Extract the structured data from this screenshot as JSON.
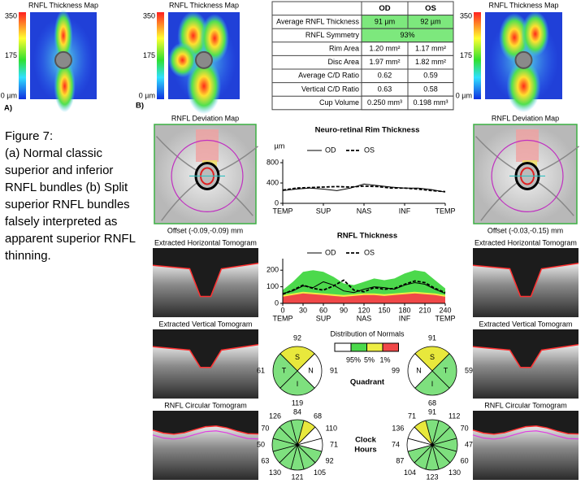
{
  "panel_a": {
    "label": "A)",
    "map_title": "RNFL Thickness Map",
    "scale": [
      "350",
      "175",
      "0 µm"
    ]
  },
  "panel_b": {
    "label": "B)",
    "od_map_title": "RNFL Thickness Map",
    "od_scale": [
      "350",
      "175",
      "0 µm"
    ],
    "os_map_title": "RNFL Thickness Map",
    "os_scale": [
      "350",
      "175",
      "0 µm"
    ]
  },
  "table": {
    "header": [
      "OD",
      "OS"
    ],
    "rows": [
      [
        "Average RNFL Thickness",
        "91 µm",
        "92 µm"
      ],
      [
        "RNFL Symmetry",
        "93%"
      ],
      [
        "Rim Area",
        "1.20 mm²",
        "1.17 mm²"
      ],
      [
        "Disc Area",
        "1.97 mm²",
        "1.82 mm²"
      ],
      [
        "Average C/D Ratio",
        "0.62",
        "0.59"
      ],
      [
        "Vertical C/D Ratio",
        "0.63",
        "0.58"
      ],
      [
        "Cup Volume",
        "0.250 mm³",
        "0.198 mm³"
      ]
    ]
  },
  "caption": [
    "Figure 7:",
    "(a) Normal classic",
    "superior and inferior",
    "RNFL bundles (b) Split",
    "superior RNFL bundles",
    "falsely interpreted as",
    "apparent superior RNFL",
    "thinning."
  ],
  "deviation": {
    "od_title": "RNFL Deviation Map",
    "od_offset": "Offset (-0.09,-0.09) mm",
    "os_title": "RNFL Deviation Map",
    "os_offset": "Offset (-0.03,-0.15) mm"
  },
  "tomograms": {
    "od": [
      "Extracted Horizontal Tomogram",
      "Extracted Vertical Tomogram",
      "RNFL Circular Tomogram"
    ],
    "os": [
      "Extracted Horizontal Tomogram",
      "Extracted Vertical Tomogram",
      "RNFL Circular Tomogram"
    ]
  },
  "rim_chart": {
    "type": "line",
    "title": "Neuro-retinal Rim Thickness",
    "y_label": "µm",
    "ylim": [
      0,
      800
    ],
    "yticks": [
      0,
      400,
      800
    ],
    "x_labels": [
      "TEMP",
      "SUP",
      "NAS",
      "INF",
      "TEMP"
    ],
    "series": [
      {
        "name": "OD",
        "color": "#000000",
        "dashed": false,
        "values": [
          250,
          280,
          300,
          280,
          250,
          300,
          380,
          350,
          320,
          300,
          300,
          270,
          220
        ]
      },
      {
        "name": "OS",
        "color": "#000000",
        "dashed": true,
        "values": [
          260,
          300,
          310,
          320,
          330,
          320,
          340,
          330,
          300,
          300,
          280,
          250,
          230
        ]
      }
    ]
  },
  "rnfl_chart": {
    "type": "line",
    "title": "RNFL Thickness",
    "ylim": [
      0,
      250
    ],
    "yticks": [
      0,
      100,
      200
    ],
    "xlim": [
      0,
      240
    ],
    "xticks": [
      0,
      30,
      60,
      90,
      120,
      150,
      180,
      210,
      240
    ],
    "x_regions": [
      "TEMP",
      "SUP",
      "NAS",
      "INF",
      "TEMP"
    ],
    "x": [
      0,
      15,
      30,
      45,
      60,
      75,
      90,
      105,
      120,
      135,
      150,
      165,
      180,
      195,
      210,
      225,
      240
    ],
    "bands_title": "Distribution of Normals",
    "bands": [
      {
        "name": "95%",
        "color": "#4cd94c",
        "values": [
          80,
          130,
          190,
          200,
          190,
          160,
          120,
          110,
          130,
          150,
          140,
          150,
          180,
          200,
          190,
          140,
          90
        ]
      },
      {
        "name": "5%",
        "color": "#eeee44",
        "values": [
          50,
          60,
          70,
          65,
          60,
          55,
          50,
          55,
          60,
          60,
          55,
          60,
          65,
          70,
          65,
          60,
          50
        ]
      },
      {
        "name": "1%",
        "color": "#f04848",
        "values": [
          40,
          50,
          60,
          55,
          50,
          45,
          40,
          45,
          50,
          50,
          45,
          50,
          55,
          60,
          55,
          50,
          40
        ]
      }
    ],
    "series": [
      {
        "name": "OD",
        "color": "#000000",
        "dashed": false,
        "values": [
          60,
          75,
          105,
          95,
          130,
          110,
          75,
          65,
          85,
          100,
          95,
          85,
          110,
          125,
          115,
          85,
          60
        ]
      },
      {
        "name": "OS",
        "color": "#000000",
        "dashed": true,
        "values": [
          55,
          80,
          110,
          90,
          80,
          105,
          140,
          80,
          70,
          95,
          85,
          90,
          115,
          135,
          125,
          90,
          65
        ]
      }
    ]
  },
  "quadrant": {
    "label": "Quadrant",
    "od": [
      {
        "name": "S",
        "value": 92,
        "color": "#e8e83c"
      },
      {
        "name": "N",
        "value": 91,
        "color": "#ffffff"
      },
      {
        "name": "I",
        "value": 119,
        "color": "#7ee07e"
      },
      {
        "name": "T",
        "value": 61,
        "color": "#7ee07e"
      }
    ],
    "os": [
      {
        "name": "S",
        "value": 91,
        "color": "#e8e83c"
      },
      {
        "name": "T",
        "value": 59,
        "color": "#7ee07e"
      },
      {
        "name": "I",
        "value": 68,
        "color": "#7ee07e"
      },
      {
        "name": "N",
        "value": 99,
        "color": "#ffffff"
      }
    ]
  },
  "clock_hours": {
    "label": [
      "Clock",
      "Hours"
    ],
    "od": [
      {
        "value": 84,
        "color": "#7ee07e"
      },
      {
        "value": 68,
        "color": "#e8e83c"
      },
      {
        "value": 110,
        "color": "#ffffff"
      },
      {
        "value": 71,
        "color": "#ffffff"
      },
      {
        "value": 92,
        "color": "#7ee07e"
      },
      {
        "value": 105,
        "color": "#7ee07e"
      },
      {
        "value": 121,
        "color": "#7ee07e"
      },
      {
        "value": 130,
        "color": "#7ee07e"
      },
      {
        "value": 63,
        "color": "#7ee07e"
      },
      {
        "value": 50,
        "color": "#7ee07e"
      },
      {
        "value": 70,
        "color": "#7ee07e"
      },
      {
        "value": 126,
        "color": "#7ee07e"
      }
    ],
    "os": [
      {
        "value": 91,
        "color": "#7ee07e"
      },
      {
        "value": 112,
        "color": "#7ee07e"
      },
      {
        "value": 70,
        "color": "#7ee07e"
      },
      {
        "value": 47,
        "color": "#7ee07e"
      },
      {
        "value": 60,
        "color": "#7ee07e"
      },
      {
        "value": 130,
        "color": "#7ee07e"
      },
      {
        "value": 123,
        "color": "#7ee07e"
      },
      {
        "value": 104,
        "color": "#7ee07e"
      },
      {
        "value": 87,
        "color": "#7ee07e"
      },
      {
        "value": 74,
        "color": "#ffffff"
      },
      {
        "value": 136,
        "color": "#ffffff"
      },
      {
        "value": 71,
        "color": "#e8e83c"
      }
    ]
  }
}
